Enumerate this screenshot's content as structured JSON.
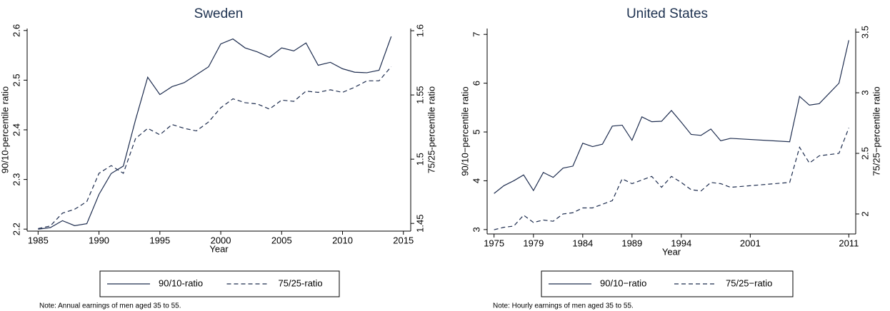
{
  "chart_data": [
    {
      "type": "line",
      "title": "Sweden",
      "xlabel": "Year",
      "ylabel": "90/10-percentile ratio",
      "y2label": "75/25-percentile ratio",
      "note": "Note: Annual earnings of men aged 35 to 55.",
      "x": [
        1985,
        1986,
        1987,
        1988,
        1989,
        1990,
        1991,
        1992,
        1993,
        1994,
        1995,
        1996,
        1997,
        1998,
        1999,
        2000,
        2001,
        2002,
        2003,
        2004,
        2005,
        2006,
        2007,
        2008,
        2009,
        2010,
        2011,
        2012,
        2013,
        2014
      ],
      "series": [
        {
          "name": "90/10-ratio",
          "color": "#1e2d4f",
          "line_style": "solid",
          "axis": "y",
          "values": [
            2.2,
            2.203,
            2.217,
            2.207,
            2.211,
            2.27,
            2.312,
            2.327,
            2.42,
            2.506,
            2.471,
            2.487,
            2.495,
            2.511,
            2.527,
            2.573,
            2.583,
            2.565,
            2.557,
            2.546,
            2.565,
            2.559,
            2.575,
            2.53,
            2.536,
            2.523,
            2.516,
            2.515,
            2.52,
            2.588
          ]
        },
        {
          "name": "75/25-ratio",
          "color": "#1e2d4f",
          "line_style": "dashed",
          "axis": "y2",
          "values": [
            1.446,
            1.448,
            1.458,
            1.461,
            1.467,
            1.489,
            1.495,
            1.489,
            1.516,
            1.524,
            1.519,
            1.527,
            1.524,
            1.522,
            1.529,
            1.54,
            1.547,
            1.544,
            1.543,
            1.539,
            1.546,
            1.545,
            1.553,
            1.552,
            1.554,
            1.552,
            1.556,
            1.561,
            1.561,
            1.572
          ]
        }
      ],
      "xlim": [
        1984.1,
        2015.6
      ],
      "xticks": [
        1985,
        1990,
        1995,
        2000,
        2005,
        2010,
        2015
      ],
      "ylim": [
        2.196,
        2.604
      ],
      "yticks": [
        2.2,
        2.3,
        2.4,
        2.5,
        2.6
      ],
      "y2lim": [
        1.444,
        1.6017
      ],
      "y2ticks": [
        1.45,
        1.5,
        1.55,
        1.6
      ]
    },
    {
      "type": "line",
      "title": "United States",
      "xlabel": "Year",
      "ylabel": "90/10−percentile ratio",
      "y2label": "75/25−percentile ratio",
      "note": "Note: Hourly earnings of men aged 35 to 55.",
      "x": [
        1975,
        1976,
        1977,
        1978,
        1979,
        1980,
        1981,
        1982,
        1983,
        1984,
        1985,
        1986,
        1987,
        1988,
        1989,
        1990,
        1991,
        1992,
        1993,
        1994,
        1995,
        1996,
        1997,
        1998,
        1999,
        2005,
        2006,
        2007,
        2008,
        2010,
        2011
      ],
      "series": [
        {
          "name": "90/10−ratio",
          "color": "#1e2d4f",
          "line_style": "solid",
          "axis": "y",
          "values": [
            3.74,
            3.9,
            4.0,
            4.12,
            3.8,
            4.17,
            4.07,
            4.26,
            4.3,
            4.77,
            4.7,
            4.75,
            5.12,
            5.14,
            4.83,
            5.31,
            5.21,
            5.22,
            5.44,
            5.2,
            4.95,
            4.93,
            5.06,
            4.82,
            4.87,
            4.8,
            5.73,
            5.55,
            5.58,
            6.0,
            6.88
          ]
        },
        {
          "name": "75/25−ratio",
          "color": "#1e2d4f",
          "line_style": "dashed",
          "axis": "y2",
          "values": [
            1.87,
            1.89,
            1.9,
            1.99,
            1.93,
            1.95,
            1.94,
            2.0,
            2.01,
            2.05,
            2.05,
            2.08,
            2.11,
            2.29,
            2.25,
            2.28,
            2.31,
            2.22,
            2.31,
            2.26,
            2.2,
            2.19,
            2.26,
            2.25,
            2.22,
            2.26,
            2.55,
            2.42,
            2.48,
            2.5,
            2.71
          ]
        }
      ],
      "xlim": [
        1974.3,
        2011.7
      ],
      "xticks": [
        1975,
        1979,
        1984,
        1989,
        1994,
        2001,
        2011
      ],
      "ylim": [
        2.91,
        7.12
      ],
      "yticks": [
        3,
        4,
        5,
        6,
        7
      ],
      "y2lim": [
        1.835,
        3.53
      ],
      "y2ticks": [
        2,
        2.5,
        3,
        3.5
      ]
    }
  ]
}
